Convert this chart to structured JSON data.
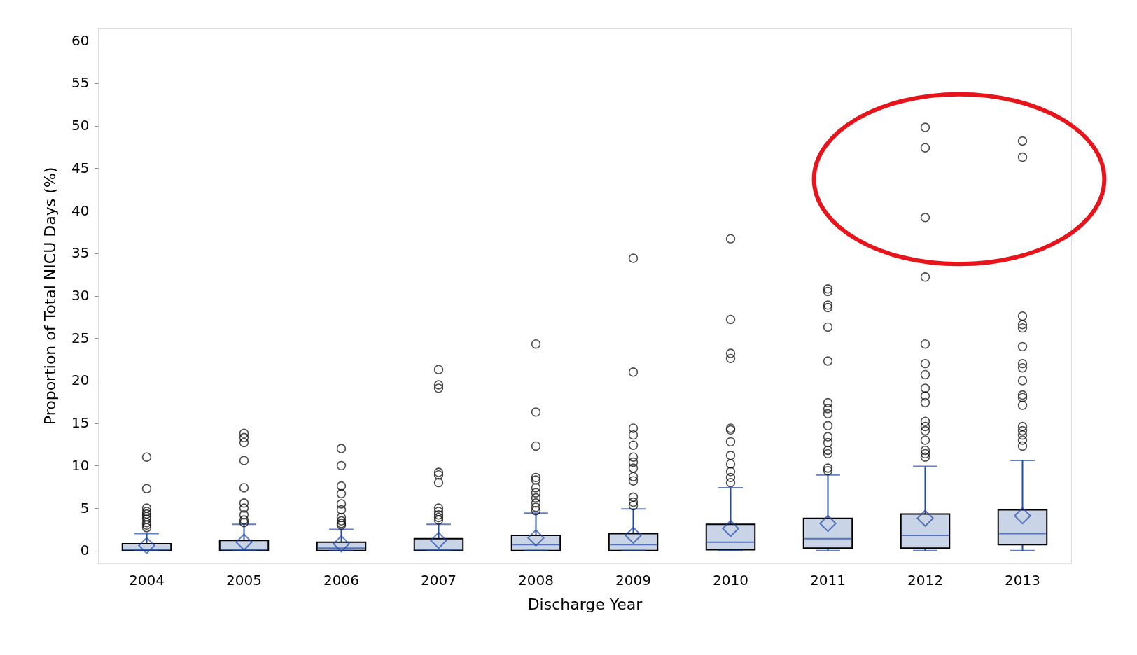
{
  "chart_data": {
    "type": "box",
    "xlabel": "Discharge Year",
    "ylabel": "Proportion of Total NICU Days (%)",
    "categories": [
      "2004",
      "2005",
      "2006",
      "2007",
      "2008",
      "2009",
      "2010",
      "2011",
      "2012",
      "2013"
    ],
    "ylim": [
      -1.5,
      61.5
    ],
    "yticks": [
      0,
      5,
      10,
      15,
      20,
      25,
      30,
      35,
      40,
      45,
      50,
      55,
      60
    ],
    "grid": false,
    "marker": "circle",
    "boxes": [
      {
        "low": 0,
        "q1": 0,
        "median": 0.1,
        "q3": 0.8,
        "high": 2.0,
        "mean": 0.6,
        "outliers": [
          11.0,
          7.3,
          5.0,
          4.6,
          4.3,
          4.0,
          3.7,
          3.3,
          3.0,
          2.7
        ]
      },
      {
        "low": 0,
        "q1": 0,
        "median": 0.1,
        "q3": 1.2,
        "high": 3.1,
        "mean": 1.0,
        "outliers": [
          13.8,
          13.3,
          12.7,
          10.6,
          7.4,
          5.6,
          5.0,
          4.2,
          3.6,
          3.3
        ]
      },
      {
        "low": 0,
        "q1": 0,
        "median": 0.3,
        "q3": 1.0,
        "high": 2.5,
        "mean": 0.8,
        "outliers": [
          12.0,
          10.0,
          7.6,
          6.7,
          5.5,
          4.8,
          3.9,
          3.5,
          3.2,
          3.0
        ]
      },
      {
        "low": 0,
        "q1": 0,
        "median": 0.1,
        "q3": 1.4,
        "high": 3.1,
        "mean": 1.2,
        "outliers": [
          21.3,
          19.5,
          19.1,
          9.2,
          8.9,
          8.0,
          5.0,
          4.6,
          4.2,
          3.9,
          3.6
        ]
      },
      {
        "low": 0,
        "q1": 0,
        "median": 0.7,
        "q3": 1.8,
        "high": 4.4,
        "mean": 1.5,
        "outliers": [
          24.3,
          16.3,
          12.3,
          8.6,
          8.3,
          7.4,
          6.8,
          6.2,
          5.6,
          5.1,
          4.7
        ]
      },
      {
        "low": 0,
        "q1": 0,
        "median": 0.7,
        "q3": 2.0,
        "high": 4.9,
        "mean": 1.8,
        "outliers": [
          34.4,
          21.0,
          14.4,
          13.6,
          12.4,
          11.0,
          10.4,
          9.7,
          8.7,
          8.2,
          6.3,
          5.7,
          5.3
        ]
      },
      {
        "low": 0,
        "q1": 0.1,
        "median": 1.0,
        "q3": 3.1,
        "high": 7.4,
        "mean": 2.6,
        "outliers": [
          36.7,
          27.2,
          23.2,
          22.6,
          14.4,
          14.2,
          12.8,
          11.2,
          10.2,
          9.3,
          8.6,
          8.0
        ]
      },
      {
        "low": 0,
        "q1": 0.3,
        "median": 1.4,
        "q3": 3.8,
        "high": 8.9,
        "mean": 3.2,
        "outliers": [
          30.8,
          30.5,
          28.9,
          28.6,
          26.3,
          22.3,
          17.4,
          16.7,
          16.1,
          14.7,
          13.4,
          12.7,
          11.8,
          11.4,
          9.7,
          9.4
        ]
      },
      {
        "low": 0,
        "q1": 0.3,
        "median": 1.8,
        "q3": 4.3,
        "high": 9.9,
        "mean": 3.8,
        "outliers": [
          49.8,
          47.4,
          39.2,
          32.2,
          24.3,
          22.0,
          20.7,
          19.1,
          18.2,
          17.4,
          15.2,
          14.6,
          14.1,
          13.0,
          11.8,
          11.4,
          11.0
        ]
      },
      {
        "low": 0,
        "q1": 0.7,
        "median": 2.0,
        "q3": 4.8,
        "high": 10.6,
        "mean": 4.1,
        "outliers": [
          48.2,
          46.3,
          27.6,
          26.6,
          26.2,
          24.0,
          22.0,
          21.5,
          20.0,
          18.3,
          18.0,
          17.1,
          14.6,
          14.1,
          13.6,
          13.0,
          12.3
        ]
      }
    ]
  }
}
